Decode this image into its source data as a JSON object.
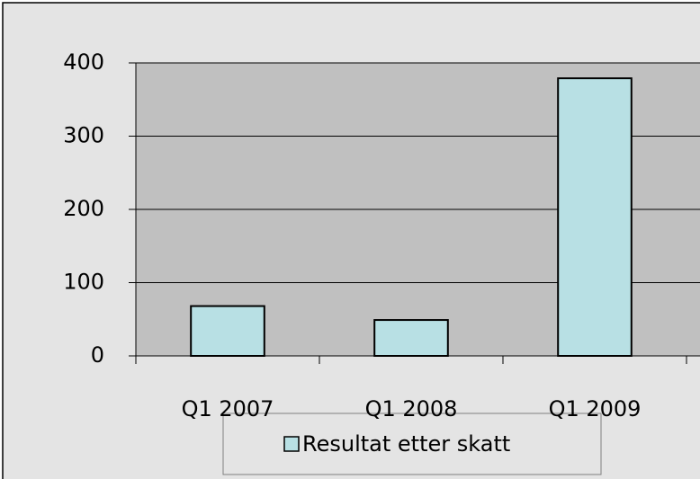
{
  "chart_data": {
    "type": "bar",
    "categories": [
      "Q1 2007",
      "Q1 2008",
      "Q1 2009"
    ],
    "series": [
      {
        "name": "Resultat etter skatt",
        "color": "#b8e0e4",
        "values": [
          68,
          49,
          379
        ]
      }
    ],
    "ylim": [
      0,
      400
    ],
    "yticks": [
      0,
      100,
      200,
      300,
      400
    ],
    "grid": true,
    "legend": "bottom"
  }
}
